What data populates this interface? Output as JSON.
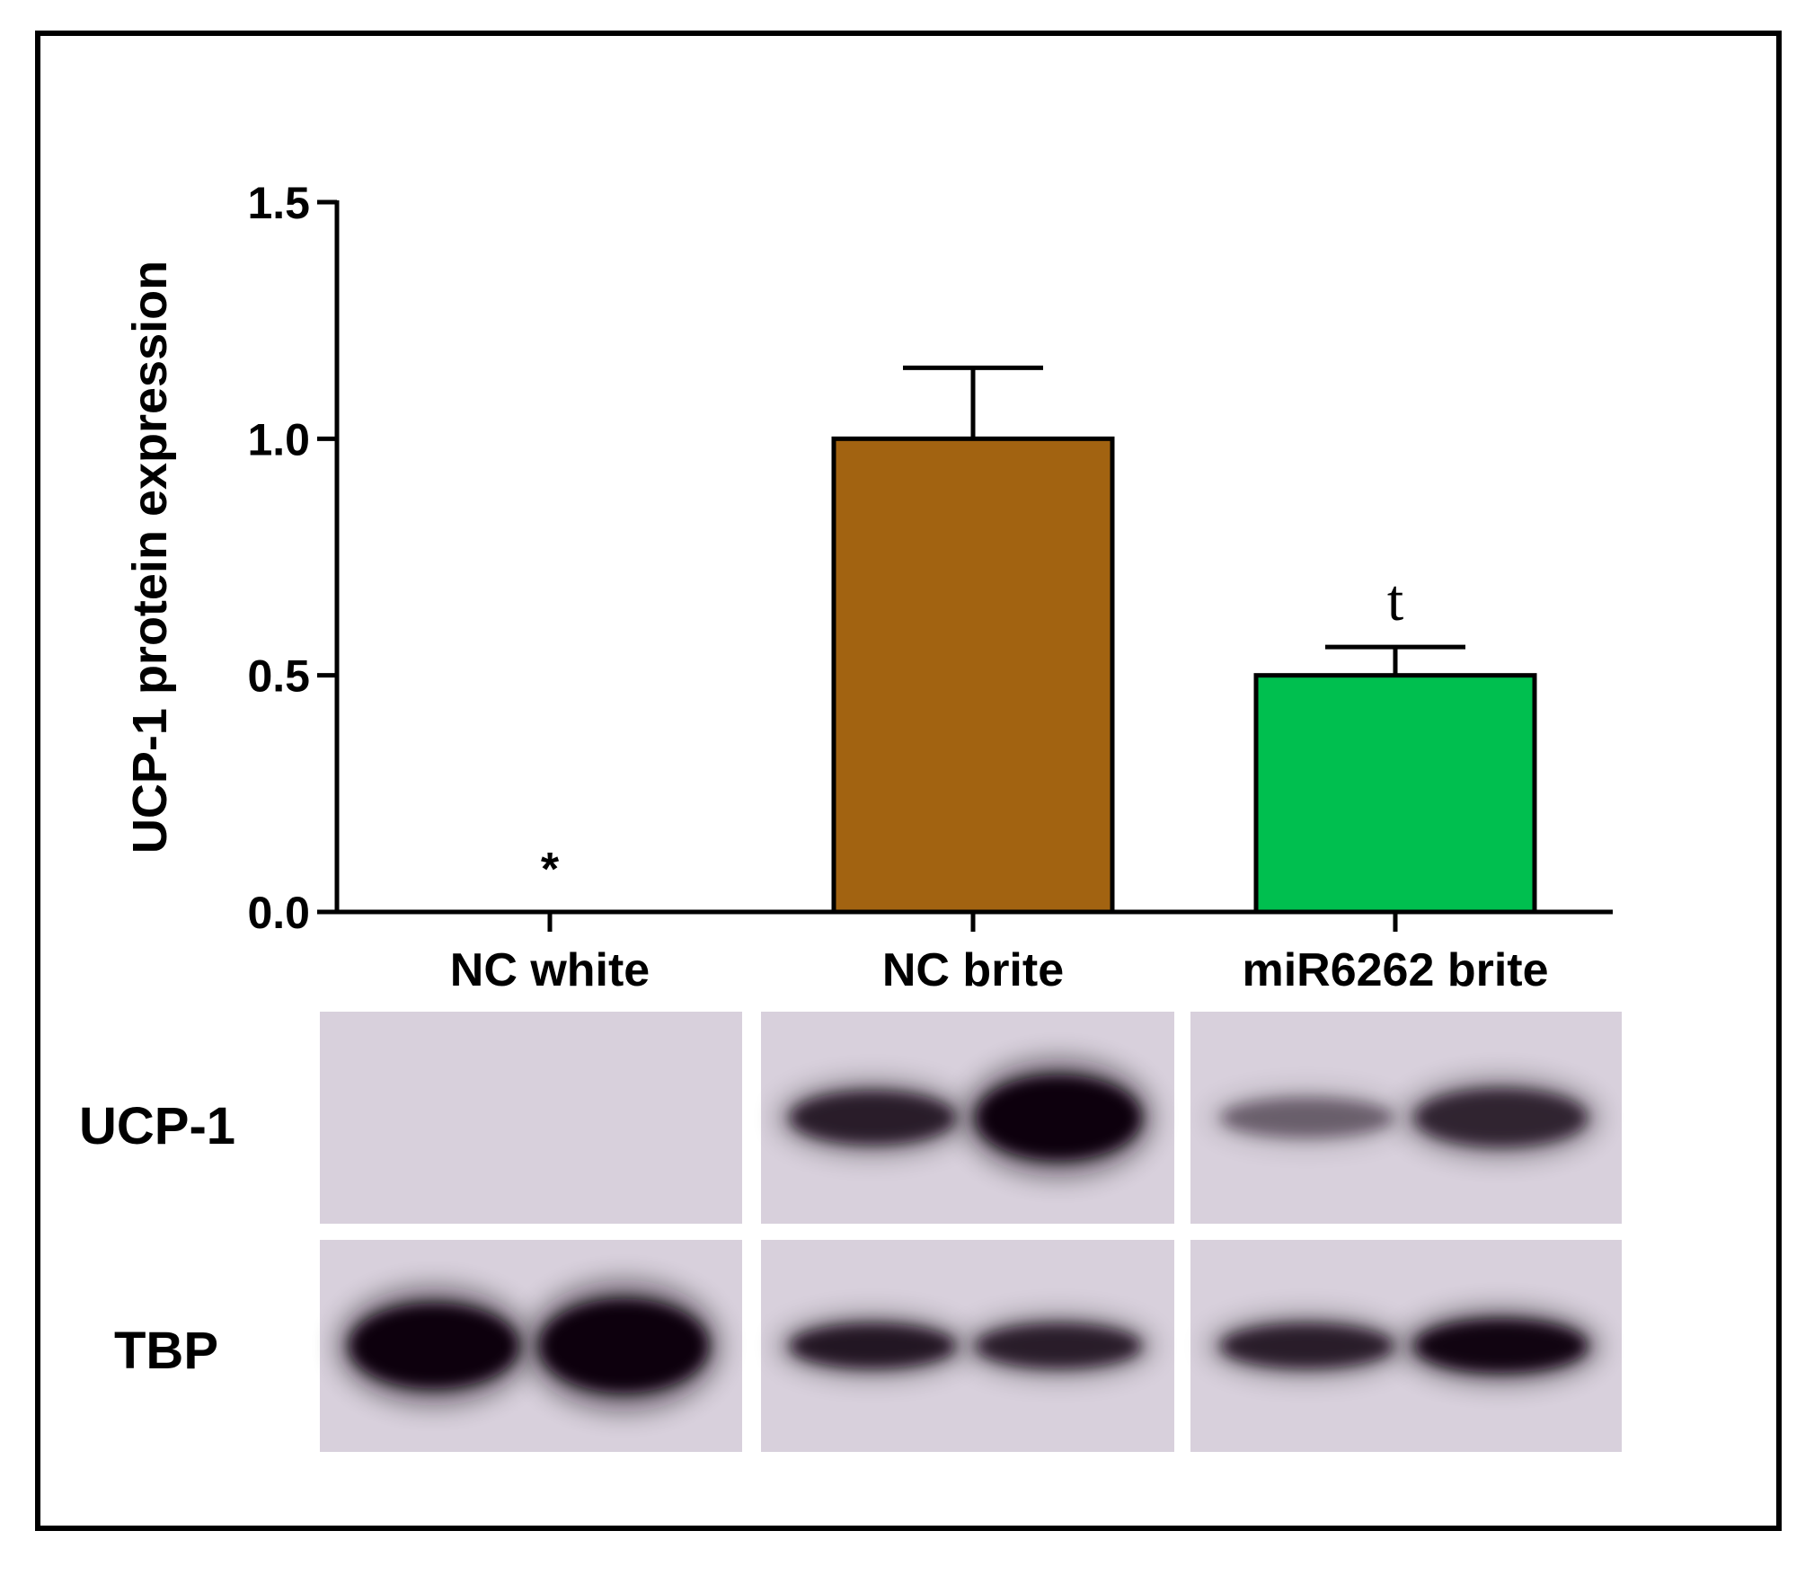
{
  "chart_data": {
    "type": "bar",
    "title": "",
    "xlabel": "",
    "ylabel": "UCP-1 protein expression",
    "ylim": [
      0,
      1.5
    ],
    "yticks": [
      "0.0",
      "0.5",
      "1.0",
      "1.5"
    ],
    "categories": [
      "NC white",
      "NC brite",
      "miR6262 brite"
    ],
    "values": [
      0,
      1.0,
      0.5
    ],
    "errors": [
      0,
      0.15,
      0.06
    ],
    "annotations": [
      "*",
      "",
      "t"
    ],
    "colors": [
      "#ffffff",
      "#a26311",
      "#00bf4f"
    ]
  },
  "western_blot": {
    "rows": [
      "UCP-1",
      "TBP"
    ],
    "groups": [
      "NC white",
      "NC brite",
      "miR6262 brite"
    ],
    "membrane_color": "#d8d0dc",
    "band_color": "#0a050c"
  }
}
